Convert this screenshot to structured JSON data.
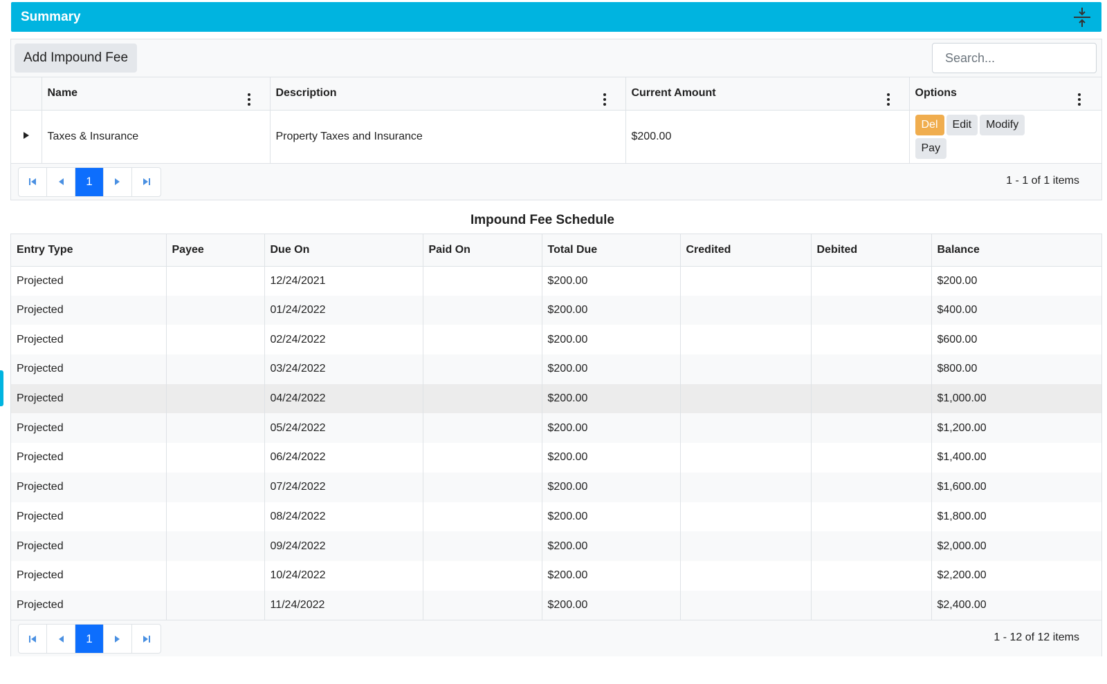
{
  "summary": {
    "title": "Summary"
  },
  "toolbar": {
    "add_label": "Add Impound Fee",
    "search_placeholder": "Search..."
  },
  "fees_table": {
    "columns": [
      "Name",
      "Description",
      "Current Amount",
      "Options"
    ],
    "rows": [
      {
        "name": "Taxes & Insurance",
        "description": "Property Taxes and Insurance",
        "amount": "$200.00",
        "options": [
          "Del",
          "Edit",
          "Modify",
          "Pay"
        ]
      }
    ],
    "pager": {
      "page": "1",
      "info": "1 - 1 of 1 items"
    }
  },
  "schedule": {
    "title": "Impound Fee Schedule",
    "columns": [
      "Entry Type",
      "Payee",
      "Due On",
      "Paid On",
      "Total Due",
      "Credited",
      "Debited",
      "Balance"
    ],
    "rows": [
      [
        "Projected",
        "",
        "12/24/2021",
        "",
        "$200.00",
        "",
        "",
        "$200.00"
      ],
      [
        "Projected",
        "",
        "01/24/2022",
        "",
        "$200.00",
        "",
        "",
        "$400.00"
      ],
      [
        "Projected",
        "",
        "02/24/2022",
        "",
        "$200.00",
        "",
        "",
        "$600.00"
      ],
      [
        "Projected",
        "",
        "03/24/2022",
        "",
        "$200.00",
        "",
        "",
        "$800.00"
      ],
      [
        "Projected",
        "",
        "04/24/2022",
        "",
        "$200.00",
        "",
        "",
        "$1,000.00"
      ],
      [
        "Projected",
        "",
        "05/24/2022",
        "",
        "$200.00",
        "",
        "",
        "$1,200.00"
      ],
      [
        "Projected",
        "",
        "06/24/2022",
        "",
        "$200.00",
        "",
        "",
        "$1,400.00"
      ],
      [
        "Projected",
        "",
        "07/24/2022",
        "",
        "$200.00",
        "",
        "",
        "$1,600.00"
      ],
      [
        "Projected",
        "",
        "08/24/2022",
        "",
        "$200.00",
        "",
        "",
        "$1,800.00"
      ],
      [
        "Projected",
        "",
        "09/24/2022",
        "",
        "$200.00",
        "",
        "",
        "$2,000.00"
      ],
      [
        "Projected",
        "",
        "10/24/2022",
        "",
        "$200.00",
        "",
        "",
        "$2,200.00"
      ],
      [
        "Projected",
        "",
        "11/24/2022",
        "",
        "$200.00",
        "",
        "",
        "$2,400.00"
      ]
    ],
    "pager": {
      "page": "1",
      "info": "1 - 12 of 12 items"
    }
  },
  "colors": {
    "accent": "#00b4e0",
    "page_active": "#0d6efd",
    "del_button": "#f0ad4e"
  },
  "icons": [
    "collapse-icon",
    "search-icon",
    "kebab-menu-icon",
    "expand-row-icon",
    "first-page-icon",
    "prev-page-icon",
    "next-page-icon",
    "last-page-icon"
  ]
}
